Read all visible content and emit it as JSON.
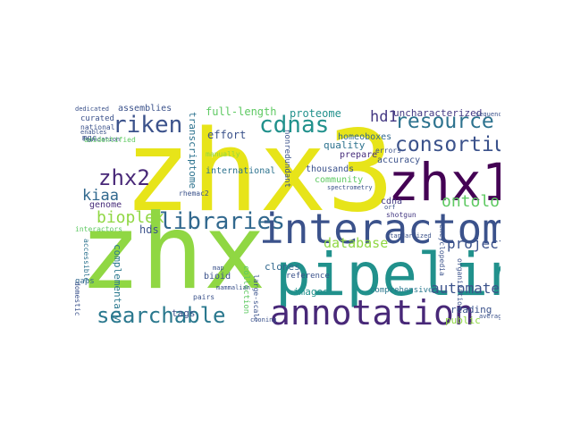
{
  "palette": {
    "dark_purple": "#440154",
    "indigo": "#3b528b",
    "blue": "#31688e",
    "teal": "#21918c",
    "green": "#35b779",
    "lime": "#90d743",
    "yellow": "#e7e419"
  },
  "word_cloud": {
    "words": [
      {
        "text": "zhx3",
        "color": "#e7e419"
      },
      {
        "text": "zhx",
        "color": "#90d743"
      },
      {
        "text": "pipeline",
        "color": "#21918c"
      },
      {
        "text": "zhx1",
        "color": "#440154"
      },
      {
        "text": "interactome",
        "color": "#3b528b"
      },
      {
        "text": "annotation",
        "color": "#482878"
      },
      {
        "text": "searchable",
        "color": "#2a788e"
      },
      {
        "text": "libraries",
        "color": "#31688e"
      },
      {
        "text": "consortium",
        "color": "#3b528b"
      },
      {
        "text": "resource",
        "color": "#2c728e"
      },
      {
        "text": "riken",
        "color": "#3b528b"
      },
      {
        "text": "cdnas",
        "color": "#21918c"
      },
      {
        "text": "zhx2",
        "color": "#482878"
      },
      {
        "text": "bioplex",
        "color": "#90d743"
      },
      {
        "text": "ontology",
        "color": "#5ec962"
      },
      {
        "text": "project",
        "color": "#3b528b"
      },
      {
        "text": "automated",
        "color": "#3b528b"
      },
      {
        "text": "database",
        "color": "#90d743"
      },
      {
        "text": "kiaa",
        "color": "#31688e"
      },
      {
        "text": "hd1",
        "color": "#443983"
      },
      {
        "text": "proteome",
        "color": "#21918c"
      },
      {
        "text": "uncharacterized",
        "color": "#443983"
      },
      {
        "text": "full-length",
        "color": "#5ec962"
      },
      {
        "text": "effort",
        "color": "#3b528b"
      },
      {
        "text": "assemblies",
        "color": "#3b528b"
      },
      {
        "text": "transcriptome",
        "color": "#2c728e"
      },
      {
        "text": "genome",
        "color": "#472d7b"
      },
      {
        "text": "hds",
        "color": "#3b528b"
      },
      {
        "text": "complementary",
        "color": "#2a788e"
      },
      {
        "text": "clones",
        "color": "#31688e"
      },
      {
        "text": "images",
        "color": "#21918c"
      },
      {
        "text": "tags",
        "color": "#3b528b"
      },
      {
        "text": "reading",
        "color": "#3b528b"
      },
      {
        "text": "public",
        "color": "#90d743"
      },
      {
        "text": "community",
        "color": "#5ec962"
      },
      {
        "text": "accuracy",
        "color": "#3b528b"
      },
      {
        "text": "quality",
        "color": "#2c728e"
      },
      {
        "text": "homeoboxes",
        "color": "#31688e"
      },
      {
        "text": "prepare",
        "color": "#472d7b"
      },
      {
        "text": "thousands",
        "color": "#3b528b"
      },
      {
        "text": "cdna",
        "color": "#443983"
      },
      {
        "text": "international",
        "color": "#2c728e"
      },
      {
        "text": "collection",
        "color": "#5ec962"
      },
      {
        "text": "reference",
        "color": "#3b528b"
      },
      {
        "text": "comprehensive",
        "color": "#2a788e"
      },
      {
        "text": "curated",
        "color": "#3b528b"
      },
      {
        "text": "national",
        "color": "#3b528b"
      },
      {
        "text": "mgc",
        "color": "#3b528b"
      },
      {
        "text": "foundation",
        "color": "#3b528b"
      },
      {
        "text": "enables",
        "color": "#3b528b"
      },
      {
        "text": "unidentified",
        "color": "#5ec962"
      },
      {
        "text": "accessible",
        "color": "#2c728e"
      },
      {
        "text": "gaps",
        "color": "#31688e"
      },
      {
        "text": "bioid",
        "color": "#3b528b"
      },
      {
        "text": "shotgun",
        "color": "#443983"
      },
      {
        "text": "domestic",
        "color": "#3b528b"
      },
      {
        "text": "mammalian",
        "color": "#3b528b"
      },
      {
        "text": "errors",
        "color": "#3b528b"
      },
      {
        "text": "standardized",
        "color": "#3b528b"
      },
      {
        "text": "encyclopedia",
        "color": "#3b528b"
      },
      {
        "text": "organization",
        "color": "#3b528b"
      },
      {
        "text": "sequenced",
        "color": "#3b528b"
      },
      {
        "text": "rhemac2",
        "color": "#3b528b"
      },
      {
        "text": "average",
        "color": "#3b528b"
      },
      {
        "text": "nonredundant",
        "color": "#3b528b"
      },
      {
        "text": "large-scale",
        "color": "#3b528b"
      },
      {
        "text": "interactors",
        "color": "#5ec962"
      },
      {
        "text": "manually",
        "color": "#90d743"
      },
      {
        "text": "spectrometry",
        "color": "#3b528b"
      },
      {
        "text": "map",
        "color": "#3b528b"
      },
      {
        "text": "pairs",
        "color": "#3b528b"
      },
      {
        "text": "orf",
        "color": "#3b528b"
      },
      {
        "text": "dedicated",
        "color": "#3b528b"
      },
      {
        "text": "cloning",
        "color": "#3b528b"
      }
    ]
  }
}
